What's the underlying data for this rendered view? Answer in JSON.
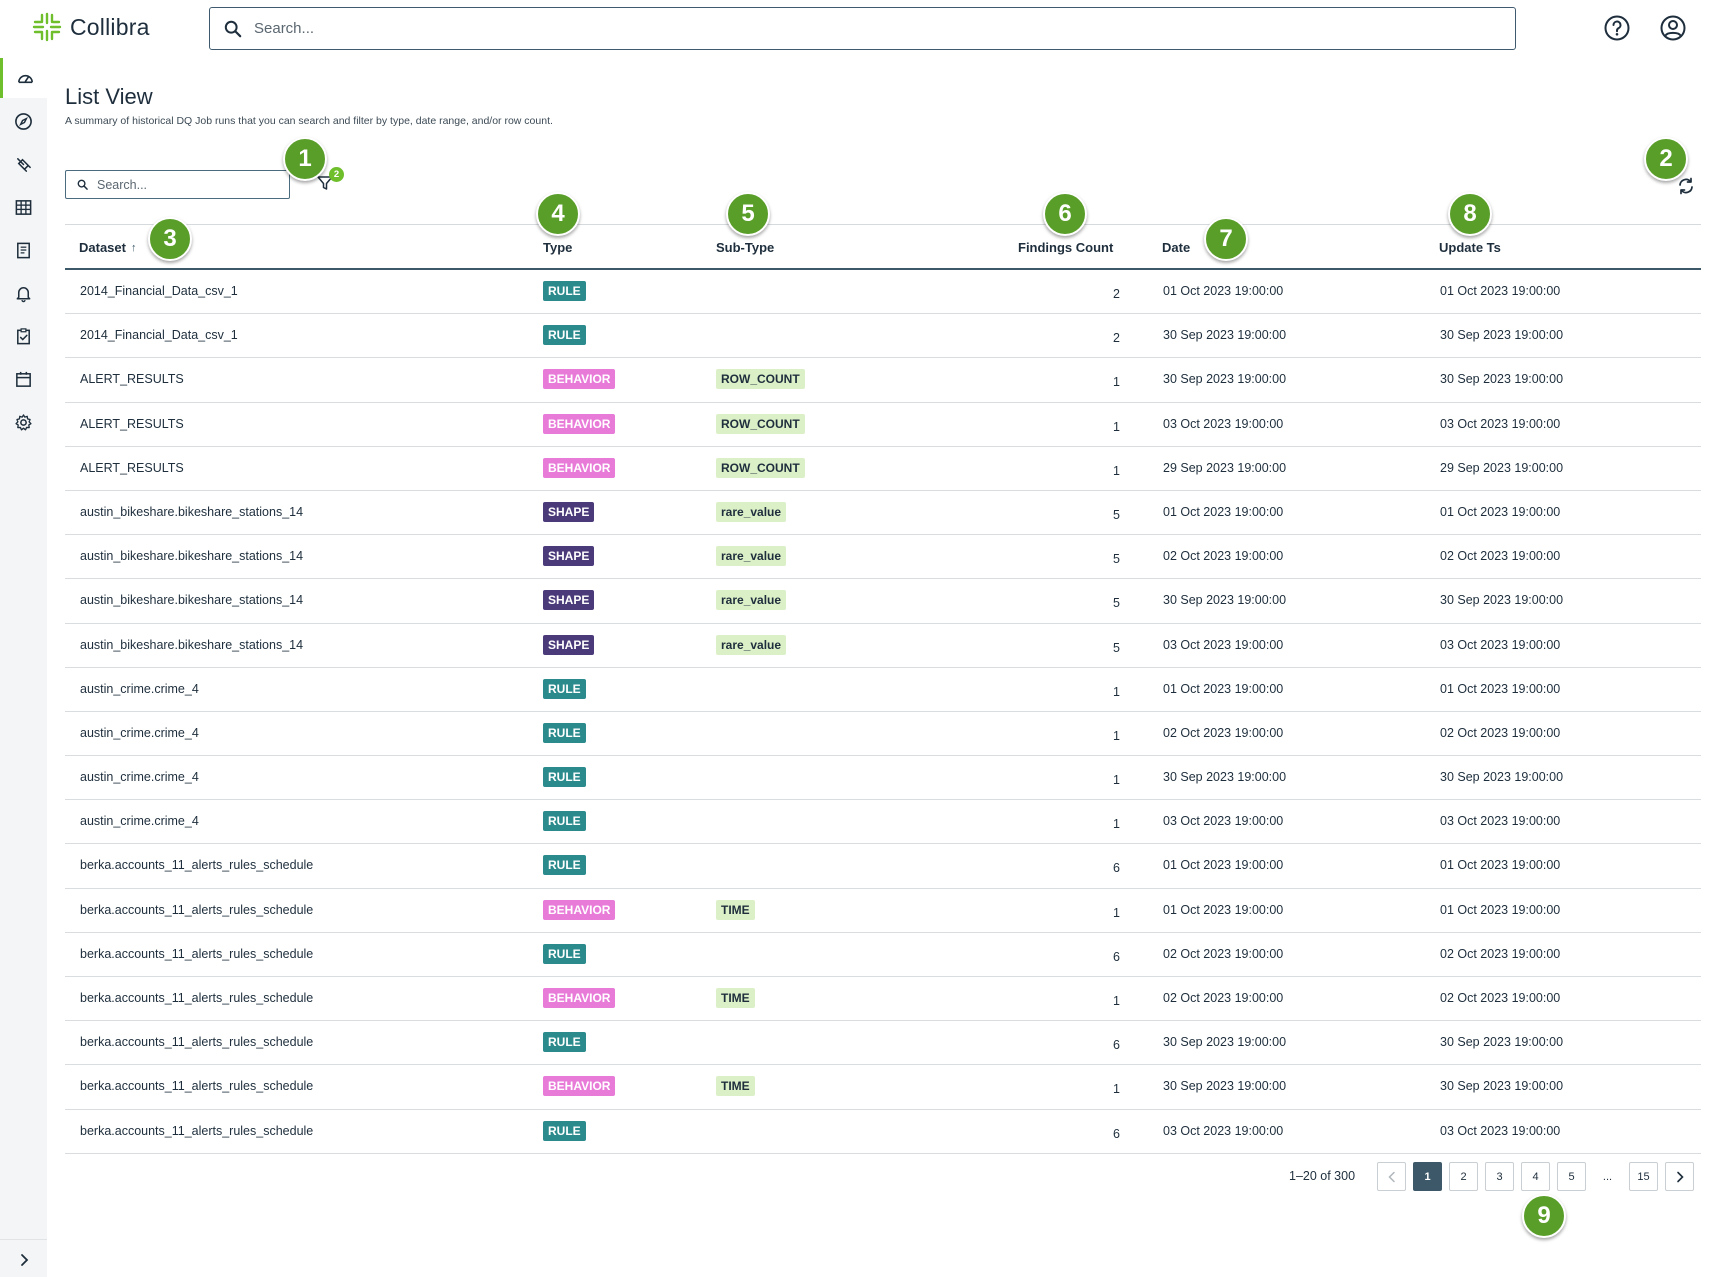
{
  "app": {
    "name": "Collibra"
  },
  "header": {
    "search_placeholder": "Search...",
    "icons": [
      "help-icon",
      "account-icon"
    ]
  },
  "sidebar": {
    "items": [
      {
        "name": "dashboard-icon",
        "active": true
      },
      {
        "name": "explore-icon"
      },
      {
        "name": "connections-icon"
      },
      {
        "name": "catalog-icon"
      },
      {
        "name": "reports-icon"
      },
      {
        "name": "alerts-icon"
      },
      {
        "name": "rules-icon"
      },
      {
        "name": "schedule-icon"
      },
      {
        "name": "settings-icon"
      }
    ],
    "expand_icon": "chevron-right-icon"
  },
  "page": {
    "title": "List View",
    "description": "A summary of historical DQ Job runs that you can search and filter by type, date range, and/or row count.",
    "search_placeholder": "Search...",
    "filter_count": "2"
  },
  "table": {
    "columns": {
      "dataset": "Dataset",
      "type": "Type",
      "subtype": "Sub-Type",
      "findings": "Findings Count",
      "date": "Date",
      "update": "Update Ts"
    },
    "sort_indicator": "↑",
    "type_colors": {
      "RULE": "#2a8a8c",
      "BEHAVIOR": "#e87ad8",
      "SHAPE": "#4b3a7a"
    },
    "rows": [
      {
        "dataset": "2014_Financial_Data_csv_1",
        "type": "RULE",
        "subtype": "",
        "findings": "2",
        "date": "01 Oct 2023 19:00:00",
        "update": "01 Oct 2023 19:00:00"
      },
      {
        "dataset": "2014_Financial_Data_csv_1",
        "type": "RULE",
        "subtype": "",
        "findings": "2",
        "date": "30 Sep 2023 19:00:00",
        "update": "30 Sep 2023 19:00:00"
      },
      {
        "dataset": "ALERT_RESULTS",
        "type": "BEHAVIOR",
        "subtype": "ROW_COUNT",
        "findings": "1",
        "date": "30 Sep 2023 19:00:00",
        "update": "30 Sep 2023 19:00:00"
      },
      {
        "dataset": "ALERT_RESULTS",
        "type": "BEHAVIOR",
        "subtype": "ROW_COUNT",
        "findings": "1",
        "date": "03 Oct 2023 19:00:00",
        "update": "03 Oct 2023 19:00:00"
      },
      {
        "dataset": "ALERT_RESULTS",
        "type": "BEHAVIOR",
        "subtype": "ROW_COUNT",
        "findings": "1",
        "date": "29 Sep 2023 19:00:00",
        "update": "29 Sep 2023 19:00:00"
      },
      {
        "dataset": "austin_bikeshare.bikeshare_stations_14",
        "type": "SHAPE",
        "subtype": "rare_value",
        "findings": "5",
        "date": "01 Oct 2023 19:00:00",
        "update": "01 Oct 2023 19:00:00"
      },
      {
        "dataset": "austin_bikeshare.bikeshare_stations_14",
        "type": "SHAPE",
        "subtype": "rare_value",
        "findings": "5",
        "date": "02 Oct 2023 19:00:00",
        "update": "02 Oct 2023 19:00:00"
      },
      {
        "dataset": "austin_bikeshare.bikeshare_stations_14",
        "type": "SHAPE",
        "subtype": "rare_value",
        "findings": "5",
        "date": "30 Sep 2023 19:00:00",
        "update": "30 Sep 2023 19:00:00"
      },
      {
        "dataset": "austin_bikeshare.bikeshare_stations_14",
        "type": "SHAPE",
        "subtype": "rare_value",
        "findings": "5",
        "date": "03 Oct 2023 19:00:00",
        "update": "03 Oct 2023 19:00:00"
      },
      {
        "dataset": "austin_crime.crime_4",
        "type": "RULE",
        "subtype": "",
        "findings": "1",
        "date": "01 Oct 2023 19:00:00",
        "update": "01 Oct 2023 19:00:00"
      },
      {
        "dataset": "austin_crime.crime_4",
        "type": "RULE",
        "subtype": "",
        "findings": "1",
        "date": "02 Oct 2023 19:00:00",
        "update": "02 Oct 2023 19:00:00"
      },
      {
        "dataset": "austin_crime.crime_4",
        "type": "RULE",
        "subtype": "",
        "findings": "1",
        "date": "30 Sep 2023 19:00:00",
        "update": "30 Sep 2023 19:00:00"
      },
      {
        "dataset": "austin_crime.crime_4",
        "type": "RULE",
        "subtype": "",
        "findings": "1",
        "date": "03 Oct 2023 19:00:00",
        "update": "03 Oct 2023 19:00:00"
      },
      {
        "dataset": "berka.accounts_11_alerts_rules_schedule",
        "type": "RULE",
        "subtype": "",
        "findings": "6",
        "date": "01 Oct 2023 19:00:00",
        "update": "01 Oct 2023 19:00:00"
      },
      {
        "dataset": "berka.accounts_11_alerts_rules_schedule",
        "type": "BEHAVIOR",
        "subtype": "TIME",
        "findings": "1",
        "date": "01 Oct 2023 19:00:00",
        "update": "01 Oct 2023 19:00:00"
      },
      {
        "dataset": "berka.accounts_11_alerts_rules_schedule",
        "type": "RULE",
        "subtype": "",
        "findings": "6",
        "date": "02 Oct 2023 19:00:00",
        "update": "02 Oct 2023 19:00:00"
      },
      {
        "dataset": "berka.accounts_11_alerts_rules_schedule",
        "type": "BEHAVIOR",
        "subtype": "TIME",
        "findings": "1",
        "date": "02 Oct 2023 19:00:00",
        "update": "02 Oct 2023 19:00:00"
      },
      {
        "dataset": "berka.accounts_11_alerts_rules_schedule",
        "type": "RULE",
        "subtype": "",
        "findings": "6",
        "date": "30 Sep 2023 19:00:00",
        "update": "30 Sep 2023 19:00:00"
      },
      {
        "dataset": "berka.accounts_11_alerts_rules_schedule",
        "type": "BEHAVIOR",
        "subtype": "TIME",
        "findings": "1",
        "date": "30 Sep 2023 19:00:00",
        "update": "30 Sep 2023 19:00:00"
      },
      {
        "dataset": "berka.accounts_11_alerts_rules_schedule",
        "type": "RULE",
        "subtype": "",
        "findings": "6",
        "date": "03 Oct 2023 19:00:00",
        "update": "03 Oct 2023 19:00:00"
      }
    ]
  },
  "pagination": {
    "range": "1–20 of 300",
    "pages": [
      "1",
      "2",
      "3",
      "4",
      "5",
      "...",
      "15"
    ],
    "active": "1"
  },
  "callouts": [
    "1",
    "2",
    "3",
    "4",
    "5",
    "6",
    "7",
    "8",
    "9"
  ],
  "colors": {
    "accent": "#6fbe2c",
    "marker": "#5a9e2a",
    "primary": "#3d5869"
  }
}
